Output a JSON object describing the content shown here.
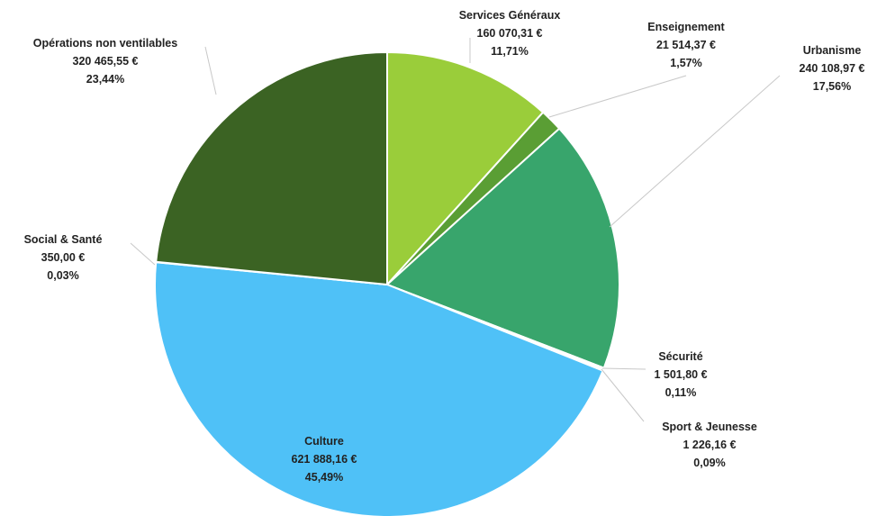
{
  "chart_data": {
    "type": "pie",
    "start_angle_deg": 0,
    "direction": "clockwise",
    "slices": [
      {
        "label": "Services Généraux",
        "value": 160070.31,
        "value_text": "160 070,31 €",
        "percent_text": "11,71%",
        "color": "#9ACD3A"
      },
      {
        "label": "Enseignement",
        "value": 21514.37,
        "value_text": "21 514,37 €",
        "percent_text": "1,57%",
        "color": "#5A9E34"
      },
      {
        "label": "Urbanisme",
        "value": 240108.97,
        "value_text": "240 108,97 €",
        "percent_text": "17,56%",
        "color": "#38A56C"
      },
      {
        "label": "Sécurité",
        "value": 1501.8,
        "value_text": "1 501,80 €",
        "percent_text": "0,11%",
        "color": "#2E8B57"
      },
      {
        "label": "Sport & Jeunesse",
        "value": 1226.16,
        "value_text": "1 226,16 €",
        "percent_text": "0,09%",
        "color": "#3FA7D6"
      },
      {
        "label": "Culture",
        "value": 621888.16,
        "value_text": "621 888,16 €",
        "percent_text": "45,49%",
        "color": "#4FC1F7"
      },
      {
        "label": "Social & Santé",
        "value": 350.0,
        "value_text": "350,00 €",
        "percent_text": "0,03%",
        "color": "#4E8F2E"
      },
      {
        "label": "Opérations non ventilables",
        "value": 320465.55,
        "value_text": "320 465,55 €",
        "percent_text": "23,44%",
        "color": "#3B6323"
      }
    ]
  }
}
